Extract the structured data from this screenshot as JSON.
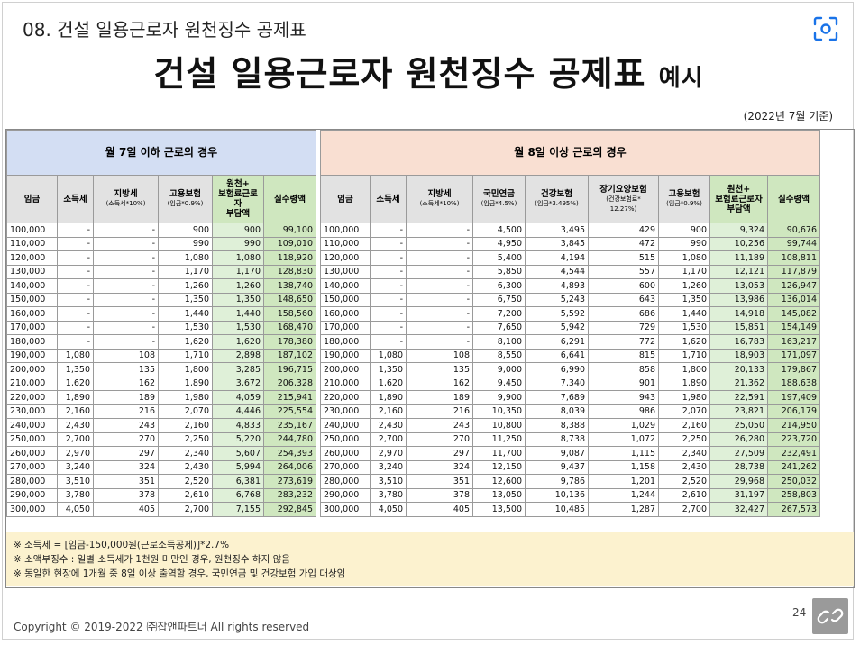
{
  "header": {
    "subtitle": "08. 건설 일용근로자 원천징수 공제표",
    "title_main": "건설 일용근로자 원천징수 공제표 ",
    "title_suffix": "예시",
    "date_note": "(2022년 7월 기준)"
  },
  "section_left": "월 7일 이하 근로의 경우",
  "section_right": "월 8일 이상 근로의 경우",
  "headers_left": [
    {
      "main": "임금",
      "sub": ""
    },
    {
      "main": "소득세",
      "sub": ""
    },
    {
      "main": "지방세",
      "sub": "(소득세*10%)"
    },
    {
      "main": "고용보험",
      "sub": "(임금*0.9%)"
    },
    {
      "main": "원천+\n보험료근로자\n부담액",
      "sub": ""
    },
    {
      "main": "실수령액",
      "sub": ""
    }
  ],
  "headers_right": [
    {
      "main": "임금",
      "sub": ""
    },
    {
      "main": "소득세",
      "sub": ""
    },
    {
      "main": "지방세",
      "sub": "(소득세*10%)"
    },
    {
      "main": "국민연금",
      "sub": "(임금*4.5%)"
    },
    {
      "main": "건강보험",
      "sub": "(임금*3.495%)"
    },
    {
      "main": "장기요양보험",
      "sub": "(건강보험료*\n12.27%)"
    },
    {
      "main": "고용보험",
      "sub": "(임금*0.9%)"
    },
    {
      "main": "원천+\n보험료근로자\n부담액",
      "sub": ""
    },
    {
      "main": "실수령액",
      "sub": ""
    }
  ],
  "rows_left": [
    [
      "100,000",
      "-",
      "-",
      "900",
      "900",
      "99,100"
    ],
    [
      "110,000",
      "-",
      "-",
      "990",
      "990",
      "109,010"
    ],
    [
      "120,000",
      "-",
      "-",
      "1,080",
      "1,080",
      "118,920"
    ],
    [
      "130,000",
      "-",
      "-",
      "1,170",
      "1,170",
      "128,830"
    ],
    [
      "140,000",
      "-",
      "-",
      "1,260",
      "1,260",
      "138,740"
    ],
    [
      "150,000",
      "-",
      "-",
      "1,350",
      "1,350",
      "148,650"
    ],
    [
      "160,000",
      "-",
      "-",
      "1,440",
      "1,440",
      "158,560"
    ],
    [
      "170,000",
      "-",
      "-",
      "1,530",
      "1,530",
      "168,470"
    ],
    [
      "180,000",
      "-",
      "-",
      "1,620",
      "1,620",
      "178,380"
    ],
    [
      "190,000",
      "1,080",
      "108",
      "1,710",
      "2,898",
      "187,102"
    ],
    [
      "200,000",
      "1,350",
      "135",
      "1,800",
      "3,285",
      "196,715"
    ],
    [
      "210,000",
      "1,620",
      "162",
      "1,890",
      "3,672",
      "206,328"
    ],
    [
      "220,000",
      "1,890",
      "189",
      "1,980",
      "4,059",
      "215,941"
    ],
    [
      "230,000",
      "2,160",
      "216",
      "2,070",
      "4,446",
      "225,554"
    ],
    [
      "240,000",
      "2,430",
      "243",
      "2,160",
      "4,833",
      "235,167"
    ],
    [
      "250,000",
      "2,700",
      "270",
      "2,250",
      "5,220",
      "244,780"
    ],
    [
      "260,000",
      "2,970",
      "297",
      "2,340",
      "5,607",
      "254,393"
    ],
    [
      "270,000",
      "3,240",
      "324",
      "2,430",
      "5,994",
      "264,006"
    ],
    [
      "280,000",
      "3,510",
      "351",
      "2,520",
      "6,381",
      "273,619"
    ],
    [
      "290,000",
      "3,780",
      "378",
      "2,610",
      "6,768",
      "283,232"
    ],
    [
      "300,000",
      "4,050",
      "405",
      "2,700",
      "7,155",
      "292,845"
    ]
  ],
  "rows_right": [
    [
      "100,000",
      "-",
      "-",
      "4,500",
      "3,495",
      "429",
      "900",
      "9,324",
      "90,676"
    ],
    [
      "110,000",
      "-",
      "-",
      "4,950",
      "3,845",
      "472",
      "990",
      "10,256",
      "99,744"
    ],
    [
      "120,000",
      "-",
      "-",
      "5,400",
      "4,194",
      "515",
      "1,080",
      "11,189",
      "108,811"
    ],
    [
      "130,000",
      "-",
      "-",
      "5,850",
      "4,544",
      "557",
      "1,170",
      "12,121",
      "117,879"
    ],
    [
      "140,000",
      "-",
      "-",
      "6,300",
      "4,893",
      "600",
      "1,260",
      "13,053",
      "126,947"
    ],
    [
      "150,000",
      "-",
      "-",
      "6,750",
      "5,243",
      "643",
      "1,350",
      "13,986",
      "136,014"
    ],
    [
      "160,000",
      "-",
      "-",
      "7,200",
      "5,592",
      "686",
      "1,440",
      "14,918",
      "145,082"
    ],
    [
      "170,000",
      "-",
      "-",
      "7,650",
      "5,942",
      "729",
      "1,530",
      "15,851",
      "154,149"
    ],
    [
      "180,000",
      "-",
      "-",
      "8,100",
      "6,291",
      "772",
      "1,620",
      "16,783",
      "163,217"
    ],
    [
      "190,000",
      "1,080",
      "108",
      "8,550",
      "6,641",
      "815",
      "1,710",
      "18,903",
      "171,097"
    ],
    [
      "200,000",
      "1,350",
      "135",
      "9,000",
      "6,990",
      "858",
      "1,800",
      "20,133",
      "179,867"
    ],
    [
      "210,000",
      "1,620",
      "162",
      "9,450",
      "7,340",
      "901",
      "1,890",
      "21,362",
      "188,638"
    ],
    [
      "220,000",
      "1,890",
      "189",
      "9,900",
      "7,689",
      "943",
      "1,980",
      "22,591",
      "197,409"
    ],
    [
      "230,000",
      "2,160",
      "216",
      "10,350",
      "8,039",
      "986",
      "2,070",
      "23,821",
      "206,179"
    ],
    [
      "240,000",
      "2,430",
      "243",
      "10,800",
      "8,388",
      "1,029",
      "2,160",
      "25,050",
      "214,950"
    ],
    [
      "250,000",
      "2,700",
      "270",
      "11,250",
      "8,738",
      "1,072",
      "2,250",
      "26,280",
      "223,720"
    ],
    [
      "260,000",
      "2,970",
      "297",
      "11,700",
      "9,087",
      "1,115",
      "2,340",
      "27,509",
      "232,491"
    ],
    [
      "270,000",
      "3,240",
      "324",
      "12,150",
      "9,437",
      "1,158",
      "2,430",
      "28,738",
      "241,262"
    ],
    [
      "280,000",
      "3,510",
      "351",
      "12,600",
      "9,786",
      "1,201",
      "2,520",
      "29,968",
      "250,032"
    ],
    [
      "290,000",
      "3,780",
      "378",
      "13,050",
      "10,136",
      "1,244",
      "2,610",
      "31,197",
      "258,803"
    ],
    [
      "300,000",
      "4,050",
      "405",
      "13,500",
      "10,485",
      "1,287",
      "2,700",
      "32,427",
      "267,573"
    ]
  ],
  "notes": [
    "※ 소득세 = [임금-150,000원(근로소득공제)]*2.7%",
    "※ 소액부징수 : 일별 소득세가 1천원 미만인 경우, 원천징수 하지 않음",
    "※ 동일한 현장에 1개월 중 8일 이상 출역할 경우, 국민연금 및 건강보험 가입 대상임"
  ],
  "footer": {
    "copyright": "Copyright © 2019-2022 ㈜잡앤파트너 All rights reserved",
    "page_number": "24"
  },
  "icons": {
    "scan": "scan-icon",
    "link": "link-icon"
  }
}
